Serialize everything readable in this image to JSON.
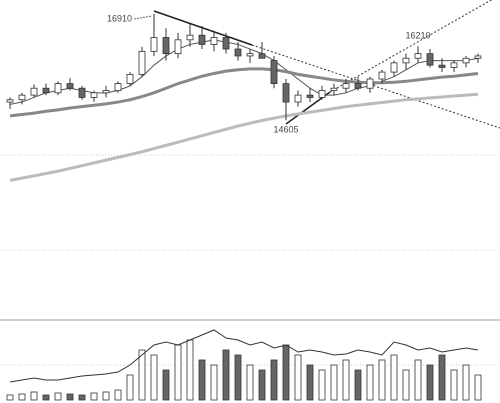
{
  "chart_data": {
    "type": "candlestick",
    "open": [
      15000,
      15050,
      15150,
      15300,
      15200,
      15400,
      15300,
      15100,
      15200,
      15250,
      15400,
      15600,
      16100,
      16400,
      16050,
      16350,
      16450,
      16250,
      16400,
      16150,
      16000,
      16050,
      15900,
      15400,
      15000,
      15150,
      15100,
      15250,
      15300,
      15400,
      15300,
      15500,
      15650,
      15850,
      15950,
      16050,
      15800,
      15750,
      15850,
      15950
    ],
    "high": [
      15100,
      15200,
      15380,
      15400,
      15450,
      15520,
      15350,
      15250,
      15350,
      15450,
      15650,
      16200,
      16910,
      16600,
      16500,
      16700,
      16650,
      16550,
      16500,
      16300,
      16150,
      16300,
      16000,
      15500,
      15250,
      15300,
      15350,
      15400,
      15500,
      15550,
      15550,
      15700,
      15900,
      16050,
      16210,
      16150,
      15950,
      15900,
      16000,
      16050
    ],
    "low": [
      14850,
      14950,
      15100,
      15150,
      15150,
      15250,
      15050,
      15000,
      15100,
      15200,
      15350,
      15550,
      16000,
      15900,
      15950,
      16200,
      16150,
      16100,
      16050,
      15900,
      15850,
      15950,
      15300,
      14605,
      14900,
      15000,
      15050,
      15150,
      15200,
      15250,
      15200,
      15400,
      15550,
      15700,
      15850,
      15750,
      15650,
      15650,
      15750,
      15850
    ],
    "close": [
      15050,
      15150,
      15300,
      15200,
      15400,
      15300,
      15100,
      15200,
      15250,
      15400,
      15600,
      16100,
      16400,
      16050,
      16350,
      16450,
      16250,
      16400,
      16150,
      16000,
      16050,
      15950,
      15400,
      15000,
      15150,
      15100,
      15250,
      15300,
      15400,
      15300,
      15500,
      15650,
      15850,
      15950,
      16050,
      15800,
      15750,
      15850,
      15950,
      16000
    ],
    "annotated_highs": [
      12,
      34
    ],
    "annotated_lows": [
      23
    ],
    "ylim": [
      11790,
      17214
    ],
    "up_color": "#ffffff",
    "down_color": "#666666",
    "edge_color": "#333333",
    "series": [
      {
        "color": "#555555",
        "width": 1,
        "values": [
          14950,
          15000,
          15100,
          15200,
          15250,
          15300,
          15250,
          15200,
          15200,
          15250,
          15350,
          15550,
          15800,
          16000,
          16150,
          16250,
          16300,
          16350,
          16300,
          16250,
          16150,
          16050,
          15900,
          15700,
          15500,
          15300,
          15150,
          15150,
          15200,
          15300,
          15350,
          15450,
          15550,
          15700,
          15850,
          15900,
          15900,
          15900,
          15900,
          15950
        ]
      },
      {
        "color": "#888888",
        "width": 3,
        "values": [
          14700,
          14730,
          14760,
          14800,
          14830,
          14870,
          14900,
          14930,
          14960,
          15000,
          15050,
          15120,
          15200,
          15300,
          15400,
          15480,
          15560,
          15620,
          15670,
          15700,
          15720,
          15720,
          15700,
          15660,
          15600,
          15560,
          15520,
          15480,
          15450,
          15430,
          15420,
          15420,
          15430,
          15450,
          15480,
          15510,
          15540,
          15560,
          15590,
          15620
        ]
      },
      {
        "color": "#bbbbbb",
        "width": 3,
        "values": [
          13300,
          13350,
          13400,
          13450,
          13500,
          13560,
          13620,
          13680,
          13740,
          13800,
          13860,
          13920,
          13990,
          14060,
          14130,
          14200,
          14270,
          14340,
          14410,
          14480,
          14540,
          14600,
          14650,
          14700,
          14740,
          14780,
          14820,
          14860,
          14900,
          14930,
          14960,
          14990,
          15020,
          15050,
          15070,
          15090,
          15110,
          15130,
          15150,
          15170
        ]
      }
    ],
    "volume": [
      5,
      6,
      8,
      5,
      7,
      6,
      5,
      7,
      8,
      10,
      25,
      50,
      45,
      30,
      55,
      60,
      40,
      35,
      50,
      45,
      35,
      30,
      40,
      55,
      45,
      35,
      30,
      35,
      40,
      30,
      35,
      40,
      45,
      30,
      40,
      35,
      45,
      30,
      35,
      25
    ],
    "volume_line": [
      18,
      20,
      22,
      20,
      20,
      22,
      24,
      25,
      26,
      28,
      35,
      45,
      55,
      58,
      55,
      60,
      65,
      70,
      62,
      60,
      55,
      58,
      52,
      55,
      48,
      50,
      48,
      45,
      46,
      50,
      48,
      45,
      58,
      55,
      50,
      52,
      48,
      50,
      52,
      50
    ],
    "vlim": [
      0,
      80
    ]
  }
}
